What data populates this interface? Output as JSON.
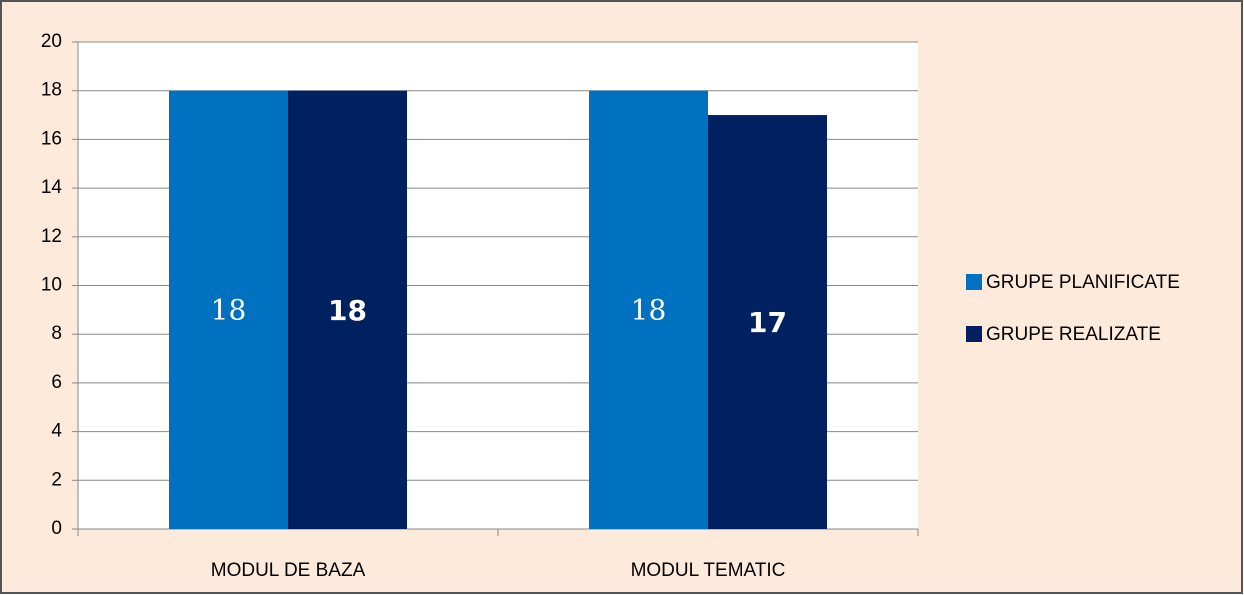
{
  "chart_data": {
    "type": "bar",
    "categories": [
      "MODUL DE BAZA",
      "MODUL TEMATIC"
    ],
    "series": [
      {
        "name": "GRUPE PLANIFICATE",
        "color": "#0070c0",
        "values": [
          18,
          18
        ]
      },
      {
        "name": "GRUPE REALIZATE",
        "color": "#002060",
        "values": [
          18,
          17
        ]
      }
    ],
    "ylim": [
      0,
      20
    ],
    "yticks": [
      0,
      2,
      4,
      6,
      8,
      10,
      12,
      14,
      16,
      18,
      20
    ],
    "grid": true,
    "legend": "right"
  }
}
